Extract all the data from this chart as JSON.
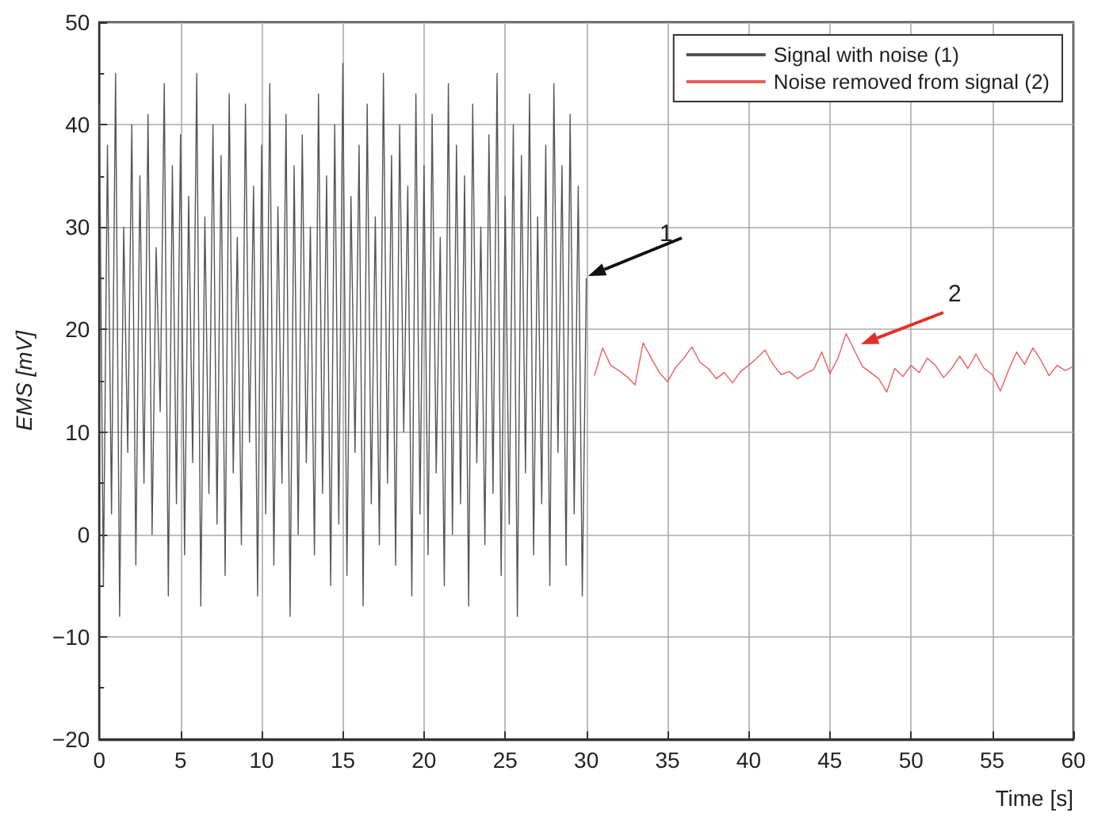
{
  "chart_data": {
    "type": "line",
    "xlabel": "Time [s]",
    "ylabel": "EMS [mV]",
    "xlim": [
      0,
      60
    ],
    "xticks": [
      0,
      5,
      10,
      15,
      20,
      25,
      30,
      35,
      40,
      45,
      50,
      55,
      60
    ],
    "ylim": [
      -20,
      50
    ],
    "yticks": [
      -20,
      -10,
      0,
      10,
      20,
      30,
      40,
      50
    ],
    "grid": true,
    "legend": "top right",
    "marker": "none",
    "line_style": "solid",
    "annotations": [
      "1",
      "2"
    ],
    "series": [
      {
        "name": "Signal with noise (1)",
        "color": "#555555",
        "x": [
          0,
          0.25,
          0.5,
          0.75,
          1,
          1.25,
          1.5,
          1.75,
          2,
          2.25,
          2.5,
          2.75,
          3,
          3.25,
          3.5,
          3.75,
          4,
          4.25,
          4.5,
          4.75,
          5,
          5.25,
          5.5,
          5.75,
          6,
          6.25,
          6.5,
          6.75,
          7,
          7.25,
          7.5,
          7.75,
          8,
          8.25,
          8.5,
          8.75,
          9,
          9.25,
          9.5,
          9.75,
          10,
          10.25,
          10.5,
          10.75,
          11,
          11.25,
          11.5,
          11.75,
          12,
          12.25,
          12.5,
          12.75,
          13,
          13.25,
          13.5,
          13.75,
          14,
          14.25,
          14.5,
          14.75,
          15,
          15.25,
          15.5,
          15.75,
          16,
          16.25,
          16.5,
          16.75,
          17,
          17.25,
          17.5,
          17.75,
          18,
          18.25,
          18.5,
          18.75,
          19,
          19.25,
          19.5,
          19.75,
          20,
          20.25,
          20.5,
          20.75,
          21,
          21.25,
          21.5,
          21.75,
          22,
          22.25,
          22.5,
          22.75,
          23,
          23.25,
          23.5,
          23.75,
          24,
          24.25,
          24.5,
          24.75,
          25,
          25.25,
          25.5,
          25.75,
          26,
          26.25,
          26.5,
          26.75,
          27,
          27.25,
          27.5,
          27.75,
          28,
          28.25,
          28.5,
          28.75,
          29,
          29.25,
          29.5,
          29.75,
          30
        ],
        "values": [
          42,
          -5,
          38,
          2,
          45,
          -8,
          30,
          8,
          40,
          -3,
          35,
          5,
          41,
          0,
          28,
          12,
          44,
          -6,
          36,
          3,
          39,
          -2,
          33,
          7,
          45,
          -7,
          31,
          4,
          40,
          1,
          37,
          -4,
          43,
          6,
          29,
          -1,
          42,
          9,
          34,
          -6,
          38,
          2,
          44,
          -3,
          32,
          5,
          41,
          -8,
          36,
          0,
          39,
          7,
          30,
          -2,
          43,
          4,
          35,
          -5,
          40,
          1,
          46,
          -4,
          33,
          8,
          38,
          -7,
          42,
          3,
          31,
          -1,
          45,
          5,
          37,
          -3,
          40,
          10,
          34,
          -6,
          43,
          2,
          36,
          -2,
          41,
          6,
          29,
          -5,
          44,
          0,
          38,
          3,
          35,
          -7,
          42,
          7,
          30,
          -1,
          39,
          4,
          45,
          -4,
          33,
          1,
          40,
          -8,
          37,
          6,
          43,
          -2,
          31,
          3,
          38,
          -5,
          44,
          8,
          36,
          -3,
          41,
          2,
          34,
          -6,
          25
        ]
      },
      {
        "name": "Noise removed from signal (2)",
        "color": "#e8605c",
        "x": [
          30.5,
          31,
          31.5,
          32,
          32.5,
          33,
          33.5,
          34,
          34.5,
          35,
          35.5,
          36,
          36.5,
          37,
          37.5,
          38,
          38.5,
          39,
          39.5,
          40,
          40.5,
          41,
          41.5,
          42,
          42.5,
          43,
          43.5,
          44,
          44.5,
          45,
          45.5,
          46,
          46.5,
          47,
          47.5,
          48,
          48.5,
          49,
          49.5,
          50,
          50.5,
          51,
          51.5,
          52,
          52.5,
          53,
          53.5,
          54,
          54.5,
          55,
          55.5,
          56,
          56.5,
          57,
          57.5,
          58,
          58.5,
          59,
          59.5,
          60
        ],
        "values": [
          15.5,
          18.2,
          16.5,
          16,
          15.4,
          14.6,
          18.7,
          17.2,
          15.8,
          14.9,
          16.3,
          17.2,
          18.3,
          16.8,
          16.2,
          15.2,
          15.8,
          14.8,
          15.9,
          16.5,
          17.2,
          18,
          16.6,
          15.6,
          15.9,
          15.2,
          15.7,
          16.1,
          17.8,
          15.7,
          17.2,
          19.6,
          18,
          16.4,
          15.8,
          15.2,
          13.9,
          16.2,
          15.4,
          16.5,
          15.8,
          17.2,
          16.5,
          15.3,
          16.2,
          17.4,
          16.2,
          17.6,
          16.2,
          15.6,
          14,
          16,
          17.8,
          16.6,
          18.2,
          17,
          15.5,
          16.5,
          16,
          16.4
        ]
      }
    ]
  }
}
